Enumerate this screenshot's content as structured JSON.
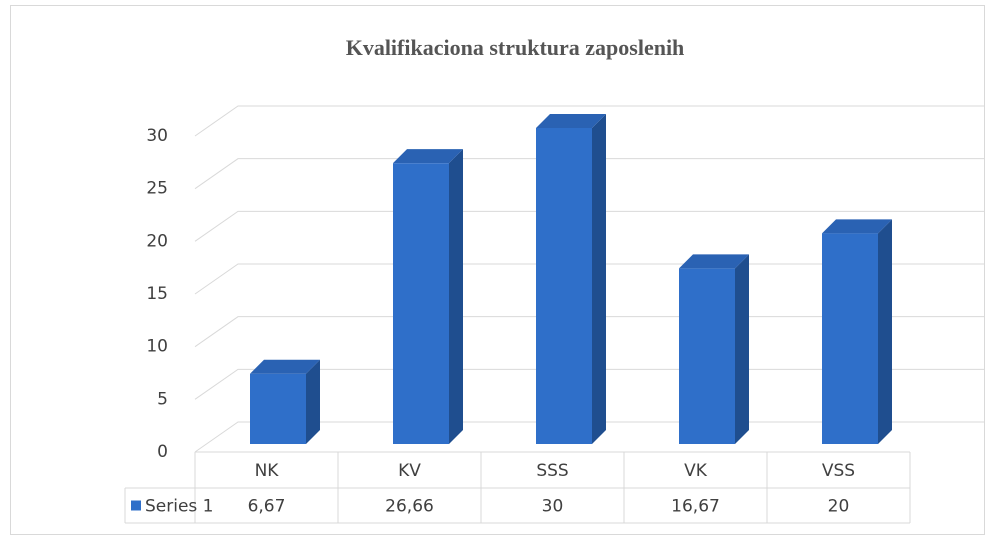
{
  "chart_data": {
    "type": "bar3d",
    "title": "Kvalifikaciona struktura zaposlenih",
    "categories": [
      "NK",
      "KV",
      "SSS",
      "VK",
      "VSS"
    ],
    "series": [
      {
        "name": "Series 1",
        "color": "#2f6fc9",
        "values": [
          6.67,
          26.66,
          30,
          16.67,
          20
        ],
        "value_labels": [
          "6,67",
          "26,66",
          "30",
          "16,67",
          "20"
        ]
      }
    ],
    "ylim": [
      0,
      30
    ],
    "yticks": [
      0,
      5,
      10,
      15,
      20,
      25,
      30
    ],
    "grid": true,
    "data_table": true
  }
}
